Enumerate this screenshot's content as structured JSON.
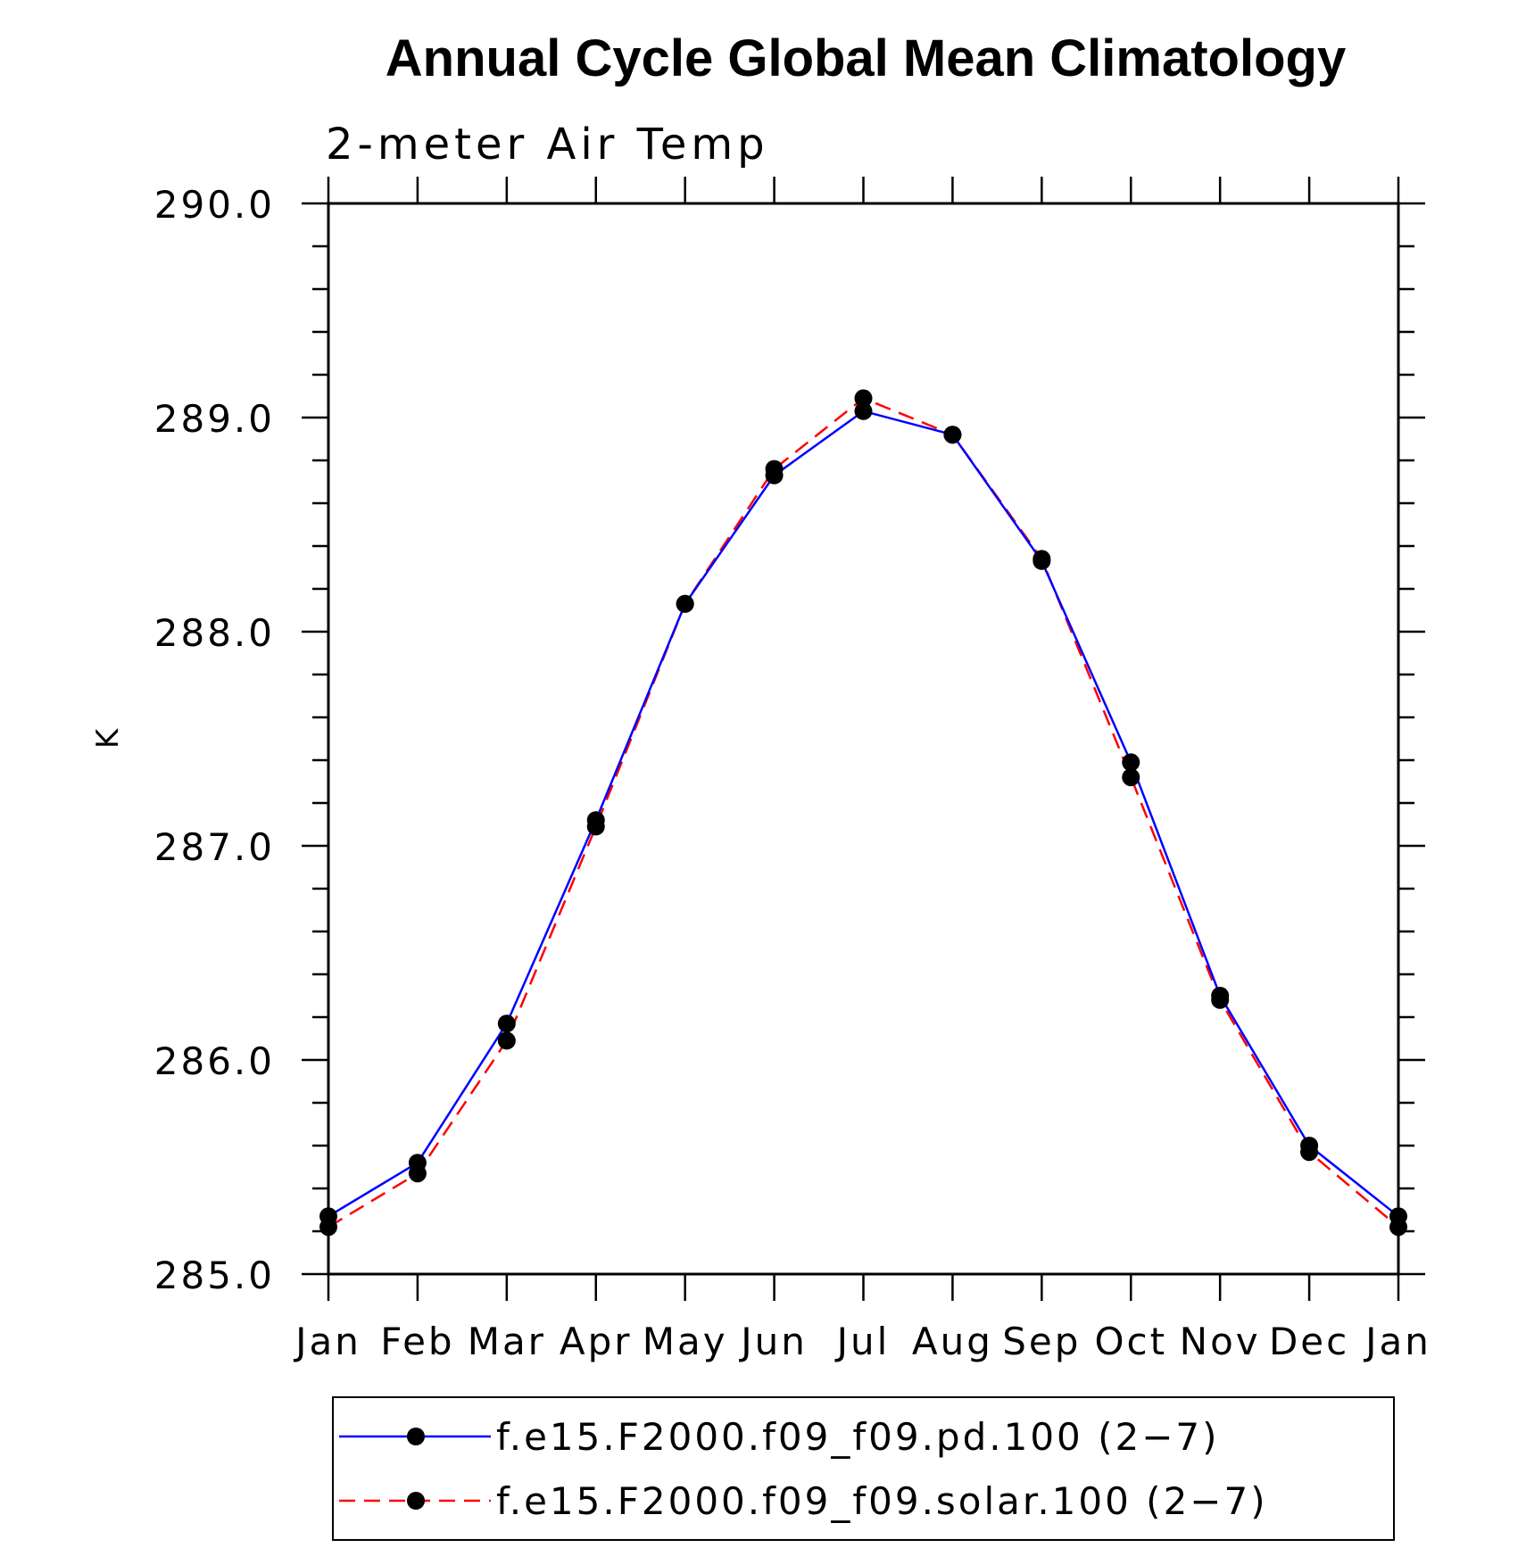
{
  "chart_data": {
    "type": "line",
    "title": "Annual Cycle Global Mean Climatology",
    "subtitle": "2-meter Air Temp",
    "xlabel": "",
    "ylabel": "K",
    "categories": [
      "Jan",
      "Feb",
      "Mar",
      "Apr",
      "May",
      "Jun",
      "Jul",
      "Aug",
      "Sep",
      "Oct",
      "Nov",
      "Dec",
      "Jan"
    ],
    "ylim": [
      285.0,
      290.0
    ],
    "y_major_ticks": [
      285.0,
      286.0,
      287.0,
      288.0,
      289.0,
      290.0
    ],
    "y_tick_labels": [
      "285.0",
      "286.0",
      "287.0",
      "288.0",
      "289.0",
      "290.0"
    ],
    "y_minor_step": 0.2,
    "grid": false,
    "legend_position": "bottom",
    "series": [
      {
        "name": "f.e15.F2000.f09_f09.pd.100 (2−7)",
        "color": "#0000ff",
        "style": "solid",
        "marker": "dot",
        "values": [
          285.27,
          285.52,
          286.17,
          287.12,
          288.13,
          288.73,
          289.03,
          288.92,
          288.33,
          287.39,
          286.3,
          285.6,
          285.27
        ]
      },
      {
        "name": "f.e15.F2000.f09_f09.solar.100 (2−7)",
        "color": "#ff0000",
        "style": "dashed",
        "marker": "dot",
        "values": [
          285.22,
          285.47,
          286.09,
          287.09,
          288.13,
          288.76,
          289.09,
          288.92,
          288.34,
          287.32,
          286.28,
          285.57,
          285.22
        ]
      }
    ]
  }
}
